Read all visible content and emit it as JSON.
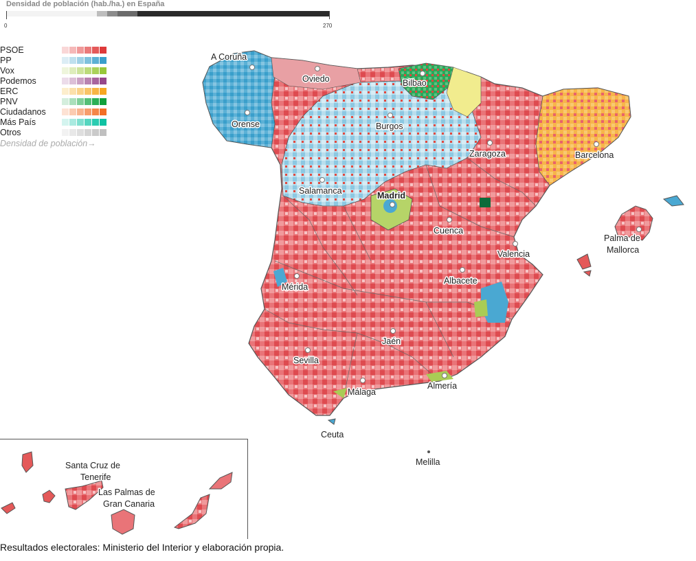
{
  "density": {
    "title": "Densidad de población (hab./ha.) en España",
    "min_label": "0",
    "max_label": "270",
    "colors": [
      "#f3f3f3",
      "#f3f3f3",
      "#f3f3f3",
      "#f3f3f3",
      "#f3f3f3",
      "#f3f3f3",
      "#f3f3f3",
      "#f3f3f3",
      "#f3f3f3",
      "#bdbdbd",
      "#8c8c8c",
      "#6b6b6b",
      "#6b6b6b",
      "#2a2a2a",
      "#2a2a2a",
      "#2a2a2a",
      "#2a2a2a",
      "#2a2a2a",
      "#2a2a2a",
      "#2a2a2a",
      "#2a2a2a",
      "#2a2a2a",
      "#2a2a2a",
      "#2a2a2a",
      "#2a2a2a",
      "#2a2a2a",
      "#2a2a2a",
      "#2a2a2a",
      "#2a2a2a",
      "#2a2a2a",
      "#2a2a2a",
      "#2a2a2a"
    ]
  },
  "legend": {
    "parties": [
      {
        "name": "PSOE",
        "colors": [
          "#f9d7d7",
          "#f5b8b8",
          "#f09999",
          "#ea7a7a",
          "#e45959",
          "#de3a3a"
        ]
      },
      {
        "name": "PP",
        "colors": [
          "#dcedf5",
          "#bfe0ee",
          "#a0d1e6",
          "#7fc1dd",
          "#5db0d4",
          "#3a9fcb"
        ]
      },
      {
        "name": "Vox",
        "colors": [
          "#eef5dc",
          "#deedbc",
          "#cde49c",
          "#bcdb7b",
          "#aad25a",
          "#98c83a"
        ]
      },
      {
        "name": "Podemos",
        "colors": [
          "#ecdcea",
          "#dcbfd7",
          "#cba1c4",
          "#b983b1",
          "#a8659e",
          "#96478a"
        ]
      },
      {
        "name": "ERC",
        "colors": [
          "#fdeecd",
          "#fce0ab",
          "#fbd289",
          "#f9c467",
          "#f8b544",
          "#f7a722"
        ]
      },
      {
        "name": "PNV",
        "colors": [
          "#d4eedd",
          "#aadfbb",
          "#80cf99",
          "#55bf77",
          "#2baf55",
          "#11a03c"
        ]
      },
      {
        "name": "Ciudadanos",
        "colors": [
          "#fde2d4",
          "#fbcbb1",
          "#f9b48e",
          "#f79d6b",
          "#f58648",
          "#f36f25"
        ]
      },
      {
        "name": "Más País",
        "colors": [
          "#d4f4ef",
          "#aaeae0",
          "#80e0d0",
          "#55d6c0",
          "#2bccb1",
          "#0fc2a3"
        ]
      },
      {
        "name": "Otros",
        "colors": [
          "#f2f2f2",
          "#e8e8e8",
          "#dedede",
          "#d4d4d4",
          "#cacaca",
          "#c0c0c0"
        ]
      }
    ],
    "footer": "Densidad de población→"
  },
  "cities": {
    "a_coruna": "A Coruña",
    "oviedo": "Oviedo",
    "bilbao": "Bilbao",
    "orense": "Orense",
    "burgos": "Burgos",
    "zaragoza": "Zaragoza",
    "barcelona": "Barcelona",
    "salamanca": "Salamanca",
    "madrid": "Madrid",
    "cuenca": "Cuenca",
    "palma_1": "Palma de",
    "palma_2": "Mallorca",
    "valencia": "Valencia",
    "merida": "Mérida",
    "albacete": "Albacete",
    "jaen": "Jaén",
    "sevilla": "Sevilla",
    "malaga": "Málaga",
    "almeria": "Almería",
    "ceuta": "Ceuta",
    "melilla": "Melilla",
    "santa_cruz_1": "Santa Cruz de",
    "santa_cruz_2": "Tenerife",
    "las_palmas_1": "Las Palmas de",
    "las_palmas_2": "Gran Canaria"
  },
  "source": "Resultados electorales: Ministerio del Interior y elaboración propia.",
  "colors": {
    "psoe_base": "#e8666a",
    "psoe_light": "#f3a9aa",
    "pp_base": "#a8d6e8",
    "pp_dark": "#4aa8d2",
    "erc": "#f5b54a",
    "pnv": "#2aa85a",
    "vox": "#a9cc55",
    "border": "#555555"
  }
}
